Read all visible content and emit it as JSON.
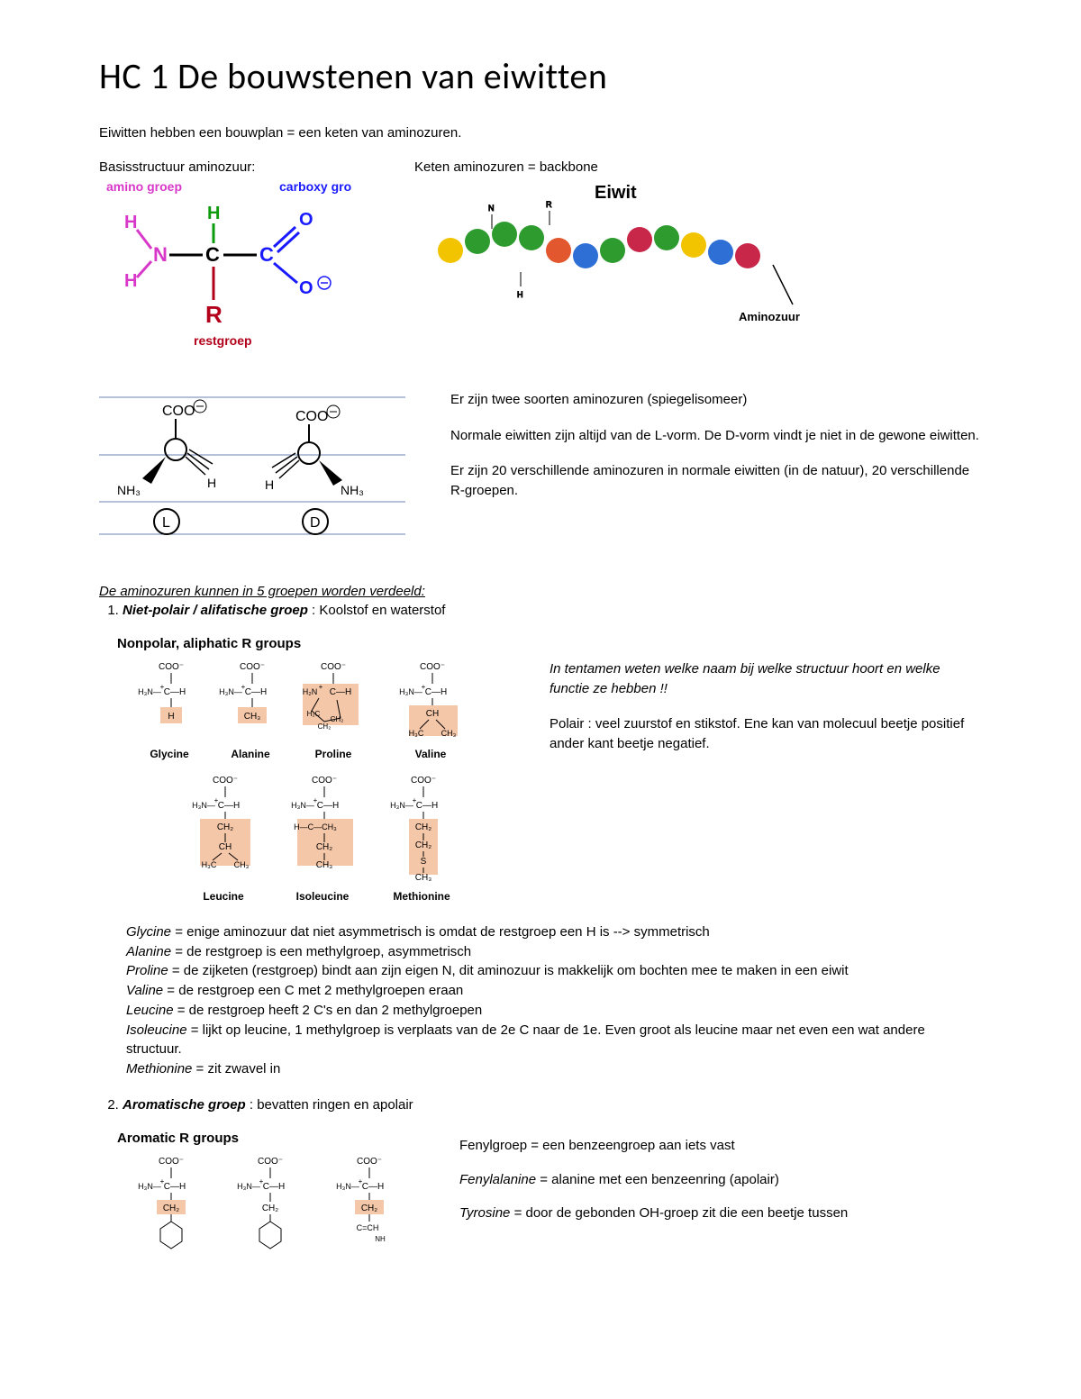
{
  "title": "HC 1 De bouwstenen van eiwitten",
  "intro": "Eiwitten hebben een bouwplan = een keten van aminozuren.",
  "basic": {
    "caption": "Basisstructuur aminozuur:",
    "amino_label": "amino groep",
    "carboxy_label": "carboxy groep",
    "rest_label": "restgroep",
    "colors": {
      "amino": "#d838c9",
      "carboxy": "#1a1aff",
      "rest": "#b3001b",
      "carbon_h": "#0d9b0d",
      "bond": "#000000"
    },
    "atoms": {
      "H": "H",
      "N": "N",
      "C": "C",
      "O": "O",
      "R": "R",
      "Ominus": "O⁻"
    }
  },
  "chain": {
    "caption": "Keten aminozuren = backbone",
    "title": "Eiwit",
    "aa_label": "Aminozuur",
    "bead_colors": [
      "#f2c400",
      "#2e9b2e",
      "#2e9b2e",
      "#2e9b2e",
      "#e2572e",
      "#2e6fd6",
      "#2e9b2e",
      "#c9274a",
      "#2e9b2e",
      "#f2c400",
      "#2e6fd6",
      "#c9274a"
    ],
    "bead_radius": 14,
    "bg": "#ffffff",
    "line_color": "#000000"
  },
  "isomer": {
    "labels": {
      "coo": "COO",
      "minus": "⊖",
      "nh3": "NH₃",
      "h": "H",
      "L": "L",
      "D": "D"
    }
  },
  "isomer_text": {
    "p1": "Er zijn twee soorten aminozuren (spiegelisomeer)",
    "p2": "Normale eiwitten zijn altijd van de L-vorm. De D-vorm vindt je niet in de gewone eiwitten.",
    "p3": "Er zijn 20 verschillende aminozuren in normale eiwitten (in de natuur), 20 verschillende R-groepen."
  },
  "groups_heading": "De aminozuren kunnen in 5 groepen worden verdeeld:",
  "group1": {
    "name": "Niet-polair / alifatische groep",
    "rest": " : Koolstof en waterstof",
    "panel_title": "Nonpolar, aliphatic R groups",
    "aa_row1": [
      "Glycine",
      "Alanine",
      "Proline",
      "Valine"
    ],
    "aa_row2": [
      "Leucine",
      "Isoleucine",
      "Methionine"
    ],
    "highlight": "#f5c7a9",
    "side_em": "In tentamen weten welke naam bij welke structuur hoort en welke functie ze hebben !!",
    "side_p": "Polair : veel zuurstof en stikstof. Ene kan van molecuul beetje positief ander kant beetje negatief."
  },
  "defs1": [
    {
      "n": "Glycine",
      "t": " = enige aminozuur dat niet asymmetrisch is omdat de restgroep een H is --> symmetrisch"
    },
    {
      "n": "Alanine",
      "t": " = de restgroep is een methylgroep, asymmetrisch"
    },
    {
      "n": "Proline",
      "t": " = de zijketen (restgroep) bindt aan zijn eigen N, dit aminozuur is makkelijk om bochten mee te maken in een eiwit"
    },
    {
      "n": "Valine",
      "t": " = de restgroep een C met 2 methylgroepen eraan"
    },
    {
      "n": "Leucine",
      "t": " = de restgroep heeft 2 C's en dan 2 methylgroepen"
    },
    {
      "n": "Isoleucine",
      "t": " = lijkt op leucine, 1 methylgroep is verplaats van de 2e C naar de 1e. Even groot als leucine maar net even een wat andere structuur."
    },
    {
      "n": "Methionine",
      "t": " = zit zwavel in"
    }
  ],
  "group2": {
    "name": "Aromatische groep",
    "rest": " : bevatten ringen en apolair",
    "panel_title": "Aromatic R groups",
    "side1": "Fenylgroep = een benzeengroep aan iets vast",
    "side2_n": "Fenylalanine",
    "side2_t": " = alanine met een benzeenring (apolair)",
    "side3_n": "Tyrosine",
    "side3_t": " = door de gebonden OH-groep zit die een beetje tussen"
  },
  "chem": {
    "coo": "COO⁻",
    "h3n": "H₃N",
    "ch": "C—H",
    "ch2": "CH₂",
    "ch3": "CH₃",
    "h": "H",
    "plus": "+"
  }
}
